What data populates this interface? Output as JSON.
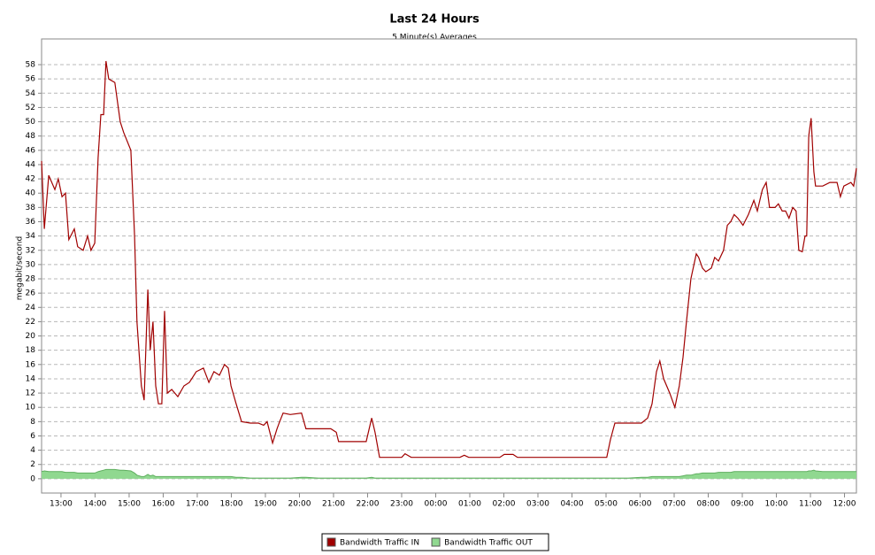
{
  "chart_data": {
    "type": "line",
    "title": "Last 24 Hours",
    "subtitle": "5 Minute(s) Averages",
    "y_label": "megabit/second",
    "legend": "bottom",
    "grid": true,
    "xlim": [
      12.43,
      36.35
    ],
    "ylim": [
      -2,
      61.6
    ],
    "yticks": [
      0,
      2,
      4,
      6,
      8,
      10,
      12,
      14,
      16,
      18,
      20,
      22,
      24,
      26,
      28,
      30,
      32,
      34,
      36,
      38,
      40,
      42,
      44,
      46,
      48,
      50,
      52,
      54,
      56,
      58
    ],
    "xticks": [
      {
        "value": 13,
        "label": "13:00"
      },
      {
        "value": 14,
        "label": "14:00"
      },
      {
        "value": 15,
        "label": "15:00"
      },
      {
        "value": 16,
        "label": "16:00"
      },
      {
        "value": 17,
        "label": "17:00"
      },
      {
        "value": 18,
        "label": "18:00"
      },
      {
        "value": 19,
        "label": "19:00"
      },
      {
        "value": 20,
        "label": "20:00"
      },
      {
        "value": 21,
        "label": "21:00"
      },
      {
        "value": 22,
        "label": "22:00"
      },
      {
        "value": 23,
        "label": "23:00"
      },
      {
        "value": 24,
        "label": "00:00"
      },
      {
        "value": 25,
        "label": "01:00"
      },
      {
        "value": 26,
        "label": "02:00"
      },
      {
        "value": 27,
        "label": "03:00"
      },
      {
        "value": 28,
        "label": "04:00"
      },
      {
        "value": 29,
        "label": "05:00"
      },
      {
        "value": 30,
        "label": "06:00"
      },
      {
        "value": 31,
        "label": "07:00"
      },
      {
        "value": 32,
        "label": "08:00"
      },
      {
        "value": 33,
        "label": "09:00"
      },
      {
        "value": 34,
        "label": "10:00"
      },
      {
        "value": 35,
        "label": "11:00"
      },
      {
        "value": 36,
        "label": "12:00"
      }
    ],
    "x": [
      12.43,
      12.51,
      12.64,
      12.82,
      12.92,
      13.03,
      13.13,
      13.23,
      13.39,
      13.49,
      13.65,
      13.78,
      13.88,
      13.99,
      14.09,
      14.17,
      14.25,
      14.32,
      14.4,
      14.58,
      14.74,
      14.84,
      15.05,
      15.16,
      15.23,
      15.36,
      15.44,
      15.55,
      15.62,
      15.7,
      15.78,
      15.86,
      15.96,
      16.04,
      16.12,
      16.25,
      16.43,
      16.61,
      16.77,
      16.97,
      17.18,
      17.34,
      17.49,
      17.65,
      17.8,
      17.91,
      17.99,
      18.14,
      18.3,
      18.56,
      18.79,
      18.95,
      19.05,
      19.21,
      19.34,
      19.42,
      19.52,
      19.73,
      20.06,
      20.19,
      20.56,
      20.92,
      21.08,
      21.15,
      21.52,
      21.96,
      22.12,
      22.22,
      22.35,
      22.79,
      23.0,
      23.1,
      23.28,
      23.67,
      24.19,
      24.71,
      24.84,
      24.97,
      25.49,
      25.88,
      26.01,
      26.27,
      26.4,
      26.79,
      27.31,
      27.83,
      28.35,
      29.02,
      29.13,
      29.26,
      29.65,
      30.04,
      30.22,
      30.35,
      30.48,
      30.58,
      30.69,
      30.87,
      31.02,
      31.15,
      31.26,
      31.36,
      31.49,
      31.65,
      31.72,
      31.83,
      31.93,
      32.09,
      32.19,
      32.3,
      32.45,
      32.56,
      32.66,
      32.76,
      32.87,
      33.02,
      33.18,
      33.34,
      33.44,
      33.59,
      33.7,
      33.8,
      33.96,
      34.06,
      34.17,
      34.27,
      34.37,
      34.48,
      34.58,
      34.66,
      34.76,
      34.84,
      34.89,
      34.95,
      35.02,
      35.1,
      35.15,
      35.36,
      35.57,
      35.78,
      35.88,
      35.98,
      36.19,
      36.27,
      36.35
    ],
    "series": [
      {
        "name": "Bandwidth Traffic OUT",
        "color": "#90d890",
        "style": "area",
        "values": [
          1,
          1.1,
          1,
          1,
          1,
          1,
          0.9,
          0.9,
          0.9,
          0.8,
          0.8,
          0.8,
          0.8,
          0.8,
          1,
          1.1,
          1.2,
          1.3,
          1.3,
          1.3,
          1.2,
          1.2,
          1.1,
          0.8,
          0.5,
          0.3,
          0.3,
          0.6,
          0.4,
          0.5,
          0.3,
          0.3,
          0.3,
          0.3,
          0.3,
          0.3,
          0.3,
          0.3,
          0.3,
          0.3,
          0.3,
          0.3,
          0.3,
          0.3,
          0.3,
          0.3,
          0.3,
          0.2,
          0.2,
          0.1,
          0.1,
          0.1,
          0.1,
          0.1,
          0.1,
          0.1,
          0.1,
          0.1,
          0.2,
          0.2,
          0.1,
          0.1,
          0.1,
          0.1,
          0.1,
          0.1,
          0.2,
          0.1,
          0.1,
          0.1,
          0.1,
          0.1,
          0.1,
          0.1,
          0.1,
          0.1,
          0.1,
          0.1,
          0.1,
          0.1,
          0.1,
          0.1,
          0.1,
          0.1,
          0.1,
          0.1,
          0.1,
          0.1,
          0.1,
          0.1,
          0.1,
          0.2,
          0.2,
          0.3,
          0.3,
          0.3,
          0.3,
          0.3,
          0.3,
          0.3,
          0.4,
          0.5,
          0.5,
          0.7,
          0.7,
          0.8,
          0.8,
          0.8,
          0.8,
          0.9,
          0.9,
          0.9,
          0.9,
          1,
          1,
          1,
          1,
          1,
          1,
          1,
          1,
          1,
          1,
          1,
          1,
          1,
          1,
          1,
          1,
          1,
          1,
          1,
          1,
          1.1,
          1.1,
          1.2,
          1.1,
          1,
          1,
          1,
          1,
          1,
          1,
          1,
          1
        ]
      },
      {
        "name": "Bandwidth Traffic IN",
        "color": "#a00000",
        "style": "line",
        "values": [
          44.5,
          35,
          42.5,
          40.5,
          42,
          39.5,
          40,
          33.5,
          35,
          32.5,
          32,
          34,
          32,
          33,
          45,
          51,
          51,
          58.5,
          56,
          55.5,
          50,
          48.5,
          46,
          34,
          22,
          13,
          11,
          26.5,
          18,
          22,
          13,
          10.5,
          10.5,
          23.5,
          12,
          12.5,
          11.5,
          13,
          13.5,
          15,
          15.5,
          13.5,
          15,
          14.5,
          16,
          15.5,
          13,
          10.5,
          8,
          7.8,
          7.8,
          7.5,
          8,
          5,
          7,
          8,
          9.2,
          9,
          9.2,
          7,
          7,
          7,
          6.5,
          5.2,
          5.2,
          5.2,
          8.5,
          6.5,
          3,
          3,
          3,
          3.5,
          3,
          3,
          3,
          3,
          3.3,
          3,
          3,
          3,
          3.4,
          3.4,
          3,
          3,
          3,
          3,
          3,
          3,
          5.5,
          7.8,
          7.8,
          7.8,
          8.5,
          10.5,
          15,
          16.5,
          14,
          12,
          10,
          13,
          17,
          22,
          28,
          31.5,
          31,
          29.5,
          29,
          29.5,
          31,
          30.5,
          32,
          35.5,
          36,
          37,
          36.5,
          35.5,
          37,
          39,
          37.5,
          40.5,
          41.5,
          38,
          38,
          38.5,
          37.5,
          37.5,
          36.5,
          38,
          37.5,
          32,
          31.8,
          34,
          34,
          48,
          50.5,
          43,
          41,
          41,
          41.5,
          41.5,
          39.5,
          41,
          41.5,
          41,
          43.5
        ]
      }
    ]
  }
}
